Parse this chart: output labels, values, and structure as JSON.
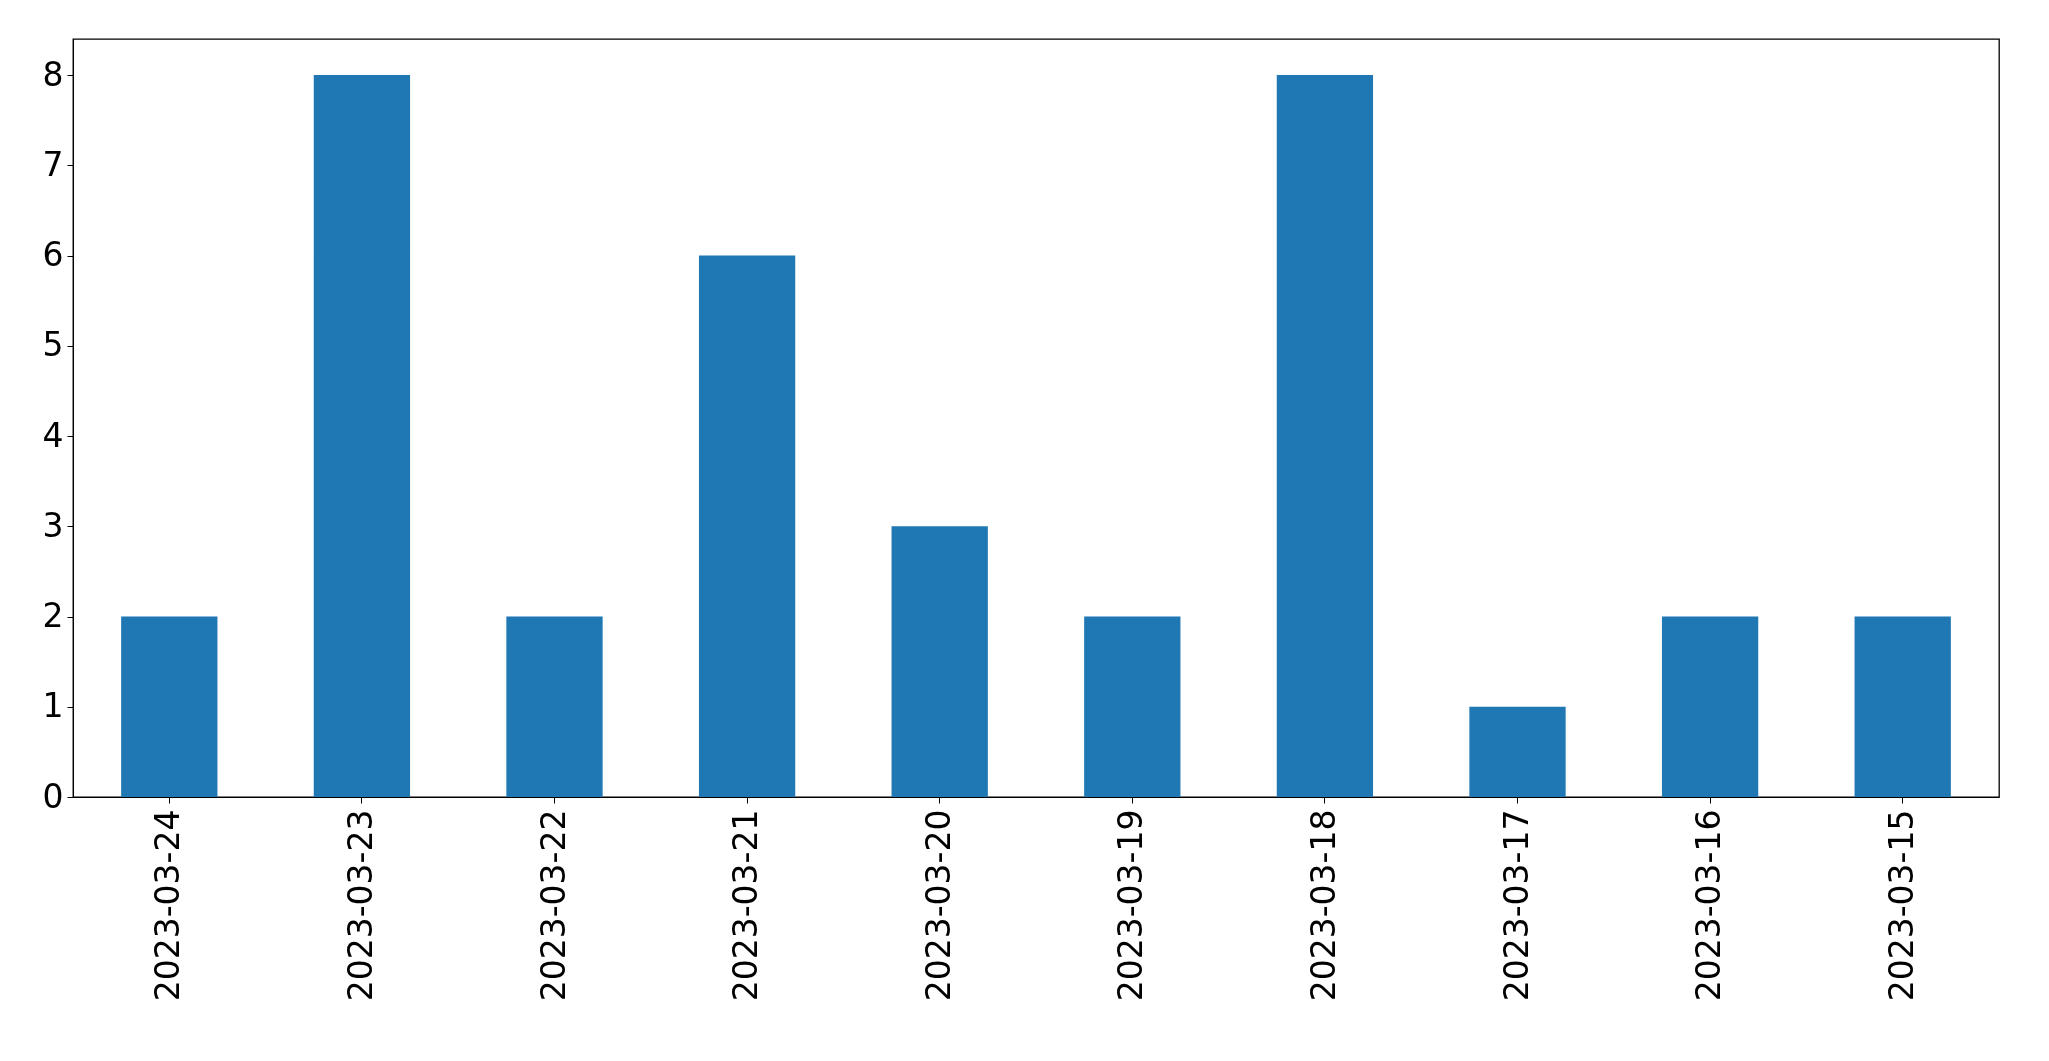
{
  "chart_data": {
    "type": "bar",
    "categories": [
      "2023-03-24",
      "2023-03-23",
      "2023-03-22",
      "2023-03-21",
      "2023-03-20",
      "2023-03-19",
      "2023-03-18",
      "2023-03-17",
      "2023-03-16",
      "2023-03-15"
    ],
    "values": [
      2,
      8,
      2,
      6,
      3,
      2,
      8,
      1,
      2,
      2
    ],
    "color": "#1f77b4",
    "ylim": [
      0,
      8.4
    ],
    "yticks": [
      0,
      1,
      2,
      3,
      4,
      5,
      6,
      7,
      8
    ]
  }
}
